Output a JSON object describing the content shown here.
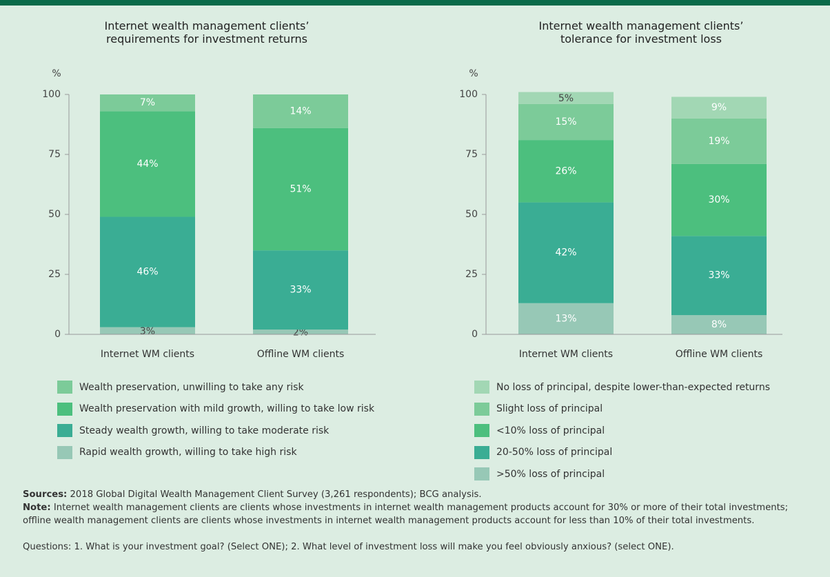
{
  "chart_data": [
    {
      "type": "stacked_bar",
      "title": "Internet wealth management clients’ requirements for investment returns",
      "y_unit": "%",
      "categories": [
        "Internet WM clients",
        "Offline WM clients"
      ],
      "ylim": [
        0,
        100
      ],
      "yticks": [
        0,
        25,
        50,
        75,
        100
      ],
      "series": [
        {
          "name": "Wealth preservation, unwilling to take any risk",
          "color": "#7ccb99",
          "values": [
            7,
            14
          ],
          "value_labels": [
            "7%",
            "14%"
          ]
        },
        {
          "name": "Wealth preservation with mild growth, willing to take low risk",
          "color": "#4cbf7e",
          "values": [
            44,
            51
          ],
          "value_labels": [
            "44%",
            "51%"
          ]
        },
        {
          "name": "Steady wealth growth, willing to take moderate risk",
          "color": "#3aad94",
          "values": [
            46,
            33
          ],
          "value_labels": [
            "46%",
            "33%"
          ]
        },
        {
          "name": "Rapid wealth growth, willing to take high risk",
          "color": "#97c8b6",
          "values": [
            3,
            2
          ],
          "value_labels": [
            "3%",
            "2%"
          ]
        }
      ]
    },
    {
      "type": "stacked_bar",
      "title": "Internet wealth management clients’ tolerance for investment loss",
      "y_unit": "%",
      "categories": [
        "Internet WM clients",
        "Offline WM clients"
      ],
      "ylim": [
        0,
        100
      ],
      "yticks": [
        0,
        25,
        50,
        75,
        100
      ],
      "series": [
        {
          "name": "No loss of principal, despite lower-than-expected returns",
          "color": "#a2d7b4",
          "values": [
            5,
            9
          ],
          "value_labels": [
            "5%",
            "9%"
          ]
        },
        {
          "name": "Slight loss of principal",
          "color": "#7ccb99",
          "values": [
            15,
            19
          ],
          "value_labels": [
            "15%",
            "19%"
          ]
        },
        {
          "name": "<10% loss of principal",
          "color": "#4cbf7e",
          "values": [
            26,
            30
          ],
          "value_labels": [
            "26%",
            "30%"
          ]
        },
        {
          "name": "20-50% loss of principal",
          "color": "#3aad94",
          "values": [
            42,
            33
          ],
          "value_labels": [
            "42%",
            "33%"
          ]
        },
        {
          "name": ">50% loss of principal",
          "color": "#97c8b6",
          "values": [
            13,
            8
          ],
          "value_labels": [
            "13%",
            "8%"
          ]
        }
      ]
    }
  ],
  "sources": {
    "label": "Sources:",
    "text": "2018 Global Digital Wealth Management Client Survey (3,261 respondents); BCG analysis."
  },
  "note": {
    "label": "Note:",
    "text": "Internet wealth management clients are clients whose investments in internet wealth management products account for 30% or more of their total investments; offline wealth management clients are clients whose investments in internet wealth management products account for less than 10% of their total investments."
  },
  "questions": "Questions: 1. What is your investment goal? (Select ONE); 2. What level of investment loss will make you feel obviously anxious? (select ONE)."
}
